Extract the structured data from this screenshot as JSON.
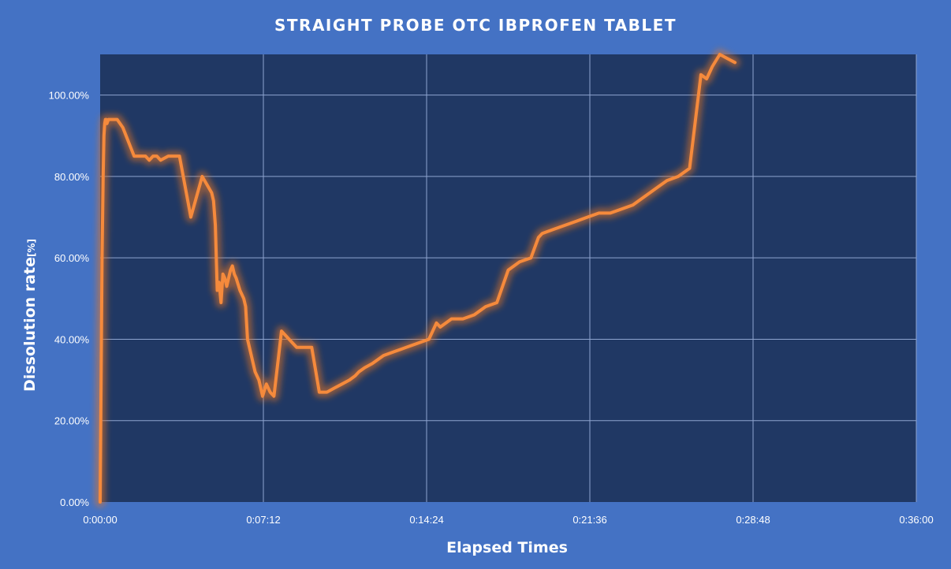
{
  "chart_data": {
    "type": "line",
    "title": "STRAIGHT PROBE OTC IBPROFEN TABLET",
    "xlabel": "Elapsed Times",
    "ylabel": "Dissolution rate",
    "ylabel_unit": "[%]",
    "x_ticks": [
      "0:00:00",
      "0:07:12",
      "0:14:24",
      "0:21:36",
      "0:28:48",
      "0:36:00"
    ],
    "y_ticks": [
      "0.00%",
      "20.00%",
      "40.00%",
      "60.00%",
      "80.00%",
      "100.00%"
    ],
    "xlim": [
      "0:00:00",
      "0:36:00"
    ],
    "ylim": [
      0,
      110
    ],
    "grid": true,
    "colors": {
      "background": "#4472c4",
      "plot_area": "#203864",
      "line": "#f58a3c",
      "glow": "#e8741c",
      "grid": "#8ea4cf"
    },
    "series": [
      {
        "x": [
          "0:00:00",
          "0:00:05",
          "0:00:08",
          "0:00:10",
          "0:00:12",
          "0:00:14",
          "0:00:16",
          "0:00:18",
          "0:00:22",
          "0:00:26",
          "0:00:30",
          "0:00:45",
          "0:01:00",
          "0:01:30",
          "0:02:00",
          "0:02:10",
          "0:02:20",
          "0:02:30",
          "0:02:40",
          "0:03:00",
          "0:03:30",
          "0:04:00",
          "0:04:30",
          "0:04:55",
          "0:05:00",
          "0:05:05",
          "0:05:10",
          "0:05:15",
          "0:05:20",
          "0:05:25",
          "0:05:30",
          "0:05:35",
          "0:05:40",
          "0:05:45",
          "0:05:50",
          "0:05:55",
          "0:06:00",
          "0:06:10",
          "0:06:20",
          "0:06:25",
          "0:06:30",
          "0:06:40",
          "0:06:50",
          "0:07:00",
          "0:07:10",
          "0:07:20",
          "0:07:30",
          "0:07:40",
          "0:08:00",
          "0:08:20",
          "0:08:40",
          "0:09:00",
          "0:09:20",
          "0:09:40",
          "0:10:00",
          "0:10:20",
          "0:10:40",
          "0:11:00",
          "0:11:15",
          "0:11:25",
          "0:11:40",
          "0:12:00",
          "0:12:30",
          "0:13:00",
          "0:13:30",
          "0:14:00",
          "0:14:30",
          "0:14:50",
          "0:15:00",
          "0:15:30",
          "0:16:00",
          "0:16:30",
          "0:17:00",
          "0:17:30",
          "0:18:00",
          "0:18:15",
          "0:18:30",
          "0:19:00",
          "0:19:20",
          "0:19:30",
          "0:20:00",
          "0:20:30",
          "0:21:00",
          "0:21:30",
          "0:22:00",
          "0:22:30",
          "0:23:00",
          "0:23:30",
          "0:24:00",
          "0:24:30",
          "0:25:00",
          "0:25:30",
          "0:25:45",
          "0:26:00",
          "0:26:30",
          "0:26:45",
          "0:27:00",
          "0:27:20",
          "0:27:40",
          "0:28:00"
        ],
        "values": [
          0,
          60,
          80,
          90,
          93,
          94,
          94,
          93,
          94,
          94,
          94,
          94,
          92,
          85,
          85,
          84,
          85,
          85,
          84,
          85,
          85,
          70,
          80,
          76,
          74,
          68,
          52,
          54,
          49,
          56,
          55,
          53,
          55,
          57,
          58,
          56,
          55,
          52,
          50,
          48,
          40,
          36,
          32,
          30,
          26,
          29,
          27,
          26,
          42,
          40,
          38,
          38,
          38,
          27,
          27,
          28,
          29,
          30,
          31,
          32,
          33,
          34,
          36,
          37,
          38,
          39,
          40,
          44,
          43,
          45,
          45,
          46,
          48,
          49,
          57,
          58,
          59,
          60,
          65,
          66,
          67,
          68,
          69,
          70,
          71,
          71,
          72,
          73,
          75,
          77,
          79,
          80,
          81,
          82,
          105,
          104,
          107,
          110,
          109,
          108
        ]
      }
    ]
  }
}
